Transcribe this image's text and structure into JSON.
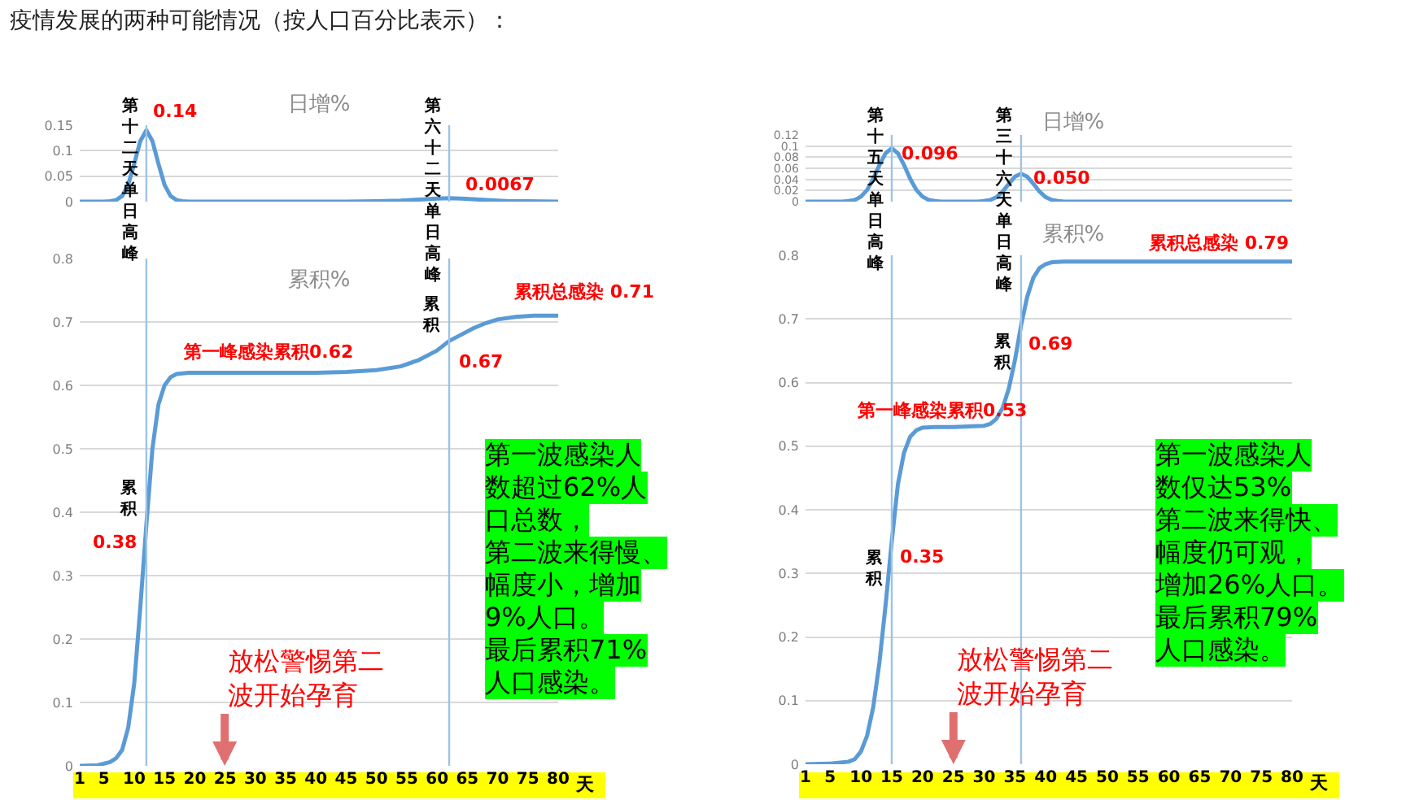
{
  "chart_data": [
    {
      "type": "line",
      "title": "日增%",
      "x": [
        1,
        5,
        6,
        7,
        8,
        9,
        10,
        11,
        12,
        13,
        14,
        15,
        16,
        17,
        18,
        19,
        30,
        45,
        50,
        54,
        57,
        60,
        62,
        64,
        67,
        70,
        72,
        75,
        80
      ],
      "values": [
        0,
        0,
        0.001,
        0.003,
        0.011,
        0.033,
        0.074,
        0.119,
        0.14,
        0.119,
        0.074,
        0.033,
        0.011,
        0.003,
        0.001,
        0,
        0,
        0,
        0.001,
        0.002,
        0.004,
        0.006,
        0.0067,
        0.006,
        0.004,
        0.002,
        0.001,
        0.001,
        0
      ],
      "color": "#5b9bd5",
      "xlim": [
        1,
        80
      ],
      "ylim": [
        0,
        0.15
      ],
      "yticks": [
        0,
        0.05,
        0.1,
        0.15
      ],
      "grid": "y",
      "tick_labels": "y",
      "ref_lines": [
        {
          "axis": "x",
          "value": 12,
          "label": "第十二天单日高峰",
          "color": "#9dc3e6"
        },
        {
          "axis": "x",
          "value": 62,
          "label": "第六十二天单日高峰",
          "color": "#9dc3e6"
        }
      ],
      "annotations": [
        "疫情发展的两种可能情况（按人口百分比表示）：",
        {
          "text": "0.14",
          "x": 12,
          "y": 0.14
        },
        {
          "text": "0.0067",
          "x": 62,
          "y": 0.0067
        }
      ]
    },
    {
      "type": "line",
      "title": "累积%",
      "xlabel": "天",
      "x": [
        1,
        4,
        6,
        7,
        8,
        9,
        10,
        11,
        12,
        13,
        14,
        15,
        16,
        17,
        19,
        30,
        40,
        45,
        50,
        54,
        57,
        60,
        62,
        64,
        66,
        68,
        70,
        73,
        76,
        80
      ],
      "values": [
        0,
        0.001,
        0.006,
        0.012,
        0.025,
        0.06,
        0.13,
        0.25,
        0.38,
        0.5,
        0.57,
        0.6,
        0.613,
        0.618,
        0.62,
        0.62,
        0.62,
        0.621,
        0.624,
        0.63,
        0.64,
        0.655,
        0.67,
        0.68,
        0.69,
        0.698,
        0.704,
        0.708,
        0.71,
        0.71
      ],
      "color": "#5b9bd5",
      "xlim": [
        1,
        80
      ],
      "xticks": [
        1,
        5,
        10,
        15,
        20,
        25,
        30,
        35,
        40,
        45,
        50,
        55,
        60,
        65,
        70,
        75,
        80
      ],
      "ylim": [
        0,
        0.8
      ],
      "yticks": [
        0,
        0.1,
        0.2,
        0.3,
        0.4,
        0.5,
        0.6,
        0.7,
        0.8
      ],
      "grid": "y",
      "ref_lines": [
        {
          "axis": "x",
          "value": 12,
          "label": "累积",
          "color": "#9dc3e6"
        },
        {
          "axis": "x",
          "value": 62,
          "label": "累积",
          "color": "#9dc3e6"
        }
      ],
      "annotations": [
        {
          "text": "第一峰感染累积0.62",
          "x": 32,
          "y": 0.62
        },
        {
          "text": "0.38",
          "x": 12,
          "y": 0.38
        },
        {
          "text": "0.67",
          "x": 62,
          "y": 0.67
        },
        {
          "text": "累积总感染 0.71",
          "x": 72,
          "y": 0.71
        },
        "放松警惕第二波开始孕育",
        "第一波感染人数超过62%人口总数，",
        "第二波来得慢、幅度小，增加9%人口。",
        "最后累积71%人口感染。"
      ]
    },
    {
      "type": "line",
      "title": "日增%",
      "x": [
        1,
        7,
        8,
        9,
        10,
        11,
        12,
        13,
        14,
        15,
        16,
        17,
        18,
        19,
        20,
        21,
        22,
        23,
        28,
        29,
        30,
        31,
        32,
        33,
        34,
        35,
        36,
        37,
        38,
        39,
        40,
        41,
        42,
        43,
        80
      ],
      "values": [
        0,
        0,
        0.001,
        0.003,
        0.009,
        0.021,
        0.041,
        0.066,
        0.087,
        0.096,
        0.087,
        0.066,
        0.041,
        0.021,
        0.009,
        0.003,
        0.001,
        0,
        0,
        0,
        0.001,
        0.003,
        0.008,
        0.018,
        0.032,
        0.045,
        0.05,
        0.045,
        0.032,
        0.018,
        0.008,
        0.003,
        0.001,
        0,
        0
      ],
      "color": "#5b9bd5",
      "xlim": [
        1,
        80
      ],
      "ylim": [
        0,
        0.12
      ],
      "yticks": [
        0,
        0.02,
        0.04,
        0.06,
        0.08,
        0.1,
        0.12
      ],
      "grid": "y",
      "tick_labels": "y",
      "ref_lines": [
        {
          "axis": "x",
          "value": 15,
          "label": "第十五天单日高峰",
          "color": "#9dc3e6"
        },
        {
          "axis": "x",
          "value": 36,
          "label": "第三十六天单日高峰",
          "color": "#9dc3e6"
        }
      ],
      "annotations": [
        {
          "text": "0.096",
          "x": 15,
          "y": 0.096
        },
        {
          "text": "0.050",
          "x": 36,
          "y": 0.05
        }
      ]
    },
    {
      "type": "line",
      "title": "累积%",
      "xlabel": "天",
      "x": [
        1,
        5,
        8,
        9,
        10,
        11,
        12,
        13,
        14,
        15,
        16,
        17,
        18,
        19,
        20,
        22,
        25,
        30,
        31,
        32,
        33,
        34,
        35,
        36,
        37,
        38,
        39,
        40,
        41,
        43,
        50,
        60,
        70,
        80
      ],
      "values": [
        0,
        0.001,
        0.004,
        0.008,
        0.02,
        0.045,
        0.09,
        0.16,
        0.25,
        0.35,
        0.44,
        0.49,
        0.515,
        0.525,
        0.529,
        0.53,
        0.53,
        0.532,
        0.535,
        0.543,
        0.56,
        0.59,
        0.635,
        0.69,
        0.735,
        0.765,
        0.78,
        0.786,
        0.789,
        0.79,
        0.79,
        0.79,
        0.79,
        0.79
      ],
      "color": "#5b9bd5",
      "xlim": [
        1,
        80
      ],
      "xticks": [
        1,
        5,
        10,
        15,
        20,
        25,
        30,
        35,
        40,
        45,
        50,
        55,
        60,
        65,
        70,
        75,
        80
      ],
      "ylim": [
        0,
        0.8
      ],
      "yticks": [
        0,
        0.1,
        0.2,
        0.3,
        0.4,
        0.5,
        0.6,
        0.7,
        0.8
      ],
      "grid": "y",
      "ref_lines": [
        {
          "axis": "x",
          "value": 15,
          "label": "累积",
          "color": "#9dc3e6"
        },
        {
          "axis": "x",
          "value": 36,
          "label": "累积",
          "color": "#9dc3e6"
        }
      ],
      "annotations": [
        {
          "text": "第一峰感染累积0.53",
          "x": 23,
          "y": 0.53
        },
        {
          "text": "0.35",
          "x": 15,
          "y": 0.35
        },
        {
          "text": "0.69",
          "x": 36,
          "y": 0.69
        },
        {
          "text": "累积总感染 0.79",
          "x": 80,
          "y": 0.79
        },
        "放松警惕第二波开始孕育",
        "第一波感染人数仅达53%",
        "第二波来得快、幅度仍可观，增加26%人口。",
        "最后累积79%人口感染。"
      ]
    }
  ]
}
